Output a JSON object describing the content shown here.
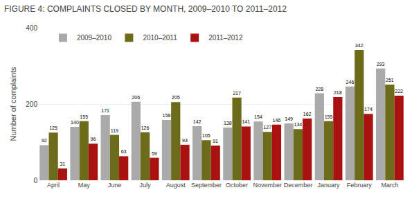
{
  "chart_data": {
    "type": "bar",
    "title": "FIGURE 4: COMPLAINTS CLOSED BY MONTH, 2009–2010 TO 2011–2012",
    "ylabel": "Number of complaints",
    "categories": [
      "April",
      "May",
      "June",
      "July",
      "August",
      "September",
      "October",
      "November",
      "December",
      "January",
      "February",
      "March"
    ],
    "series": [
      {
        "name": "2009–2010",
        "color": "#aaaaaa",
        "values": [
          92,
          140,
          171,
          206,
          158,
          142,
          138,
          154,
          149,
          228,
          246,
          293
        ]
      },
      {
        "name": "2010–2011",
        "color": "#6b6b1a",
        "values": [
          125,
          155,
          119,
          126,
          205,
          105,
          217,
          127,
          134,
          155,
          342,
          251
        ]
      },
      {
        "name": "2011–2012",
        "color": "#aa1111",
        "values": [
          31,
          96,
          63,
          59,
          93,
          91,
          141,
          146,
          162,
          218,
          174,
          222
        ]
      }
    ],
    "ylim": [
      0,
      400
    ],
    "yticks": [
      0,
      200,
      400
    ],
    "grid": true,
    "legend": "upper left",
    "data_labels": true
  }
}
